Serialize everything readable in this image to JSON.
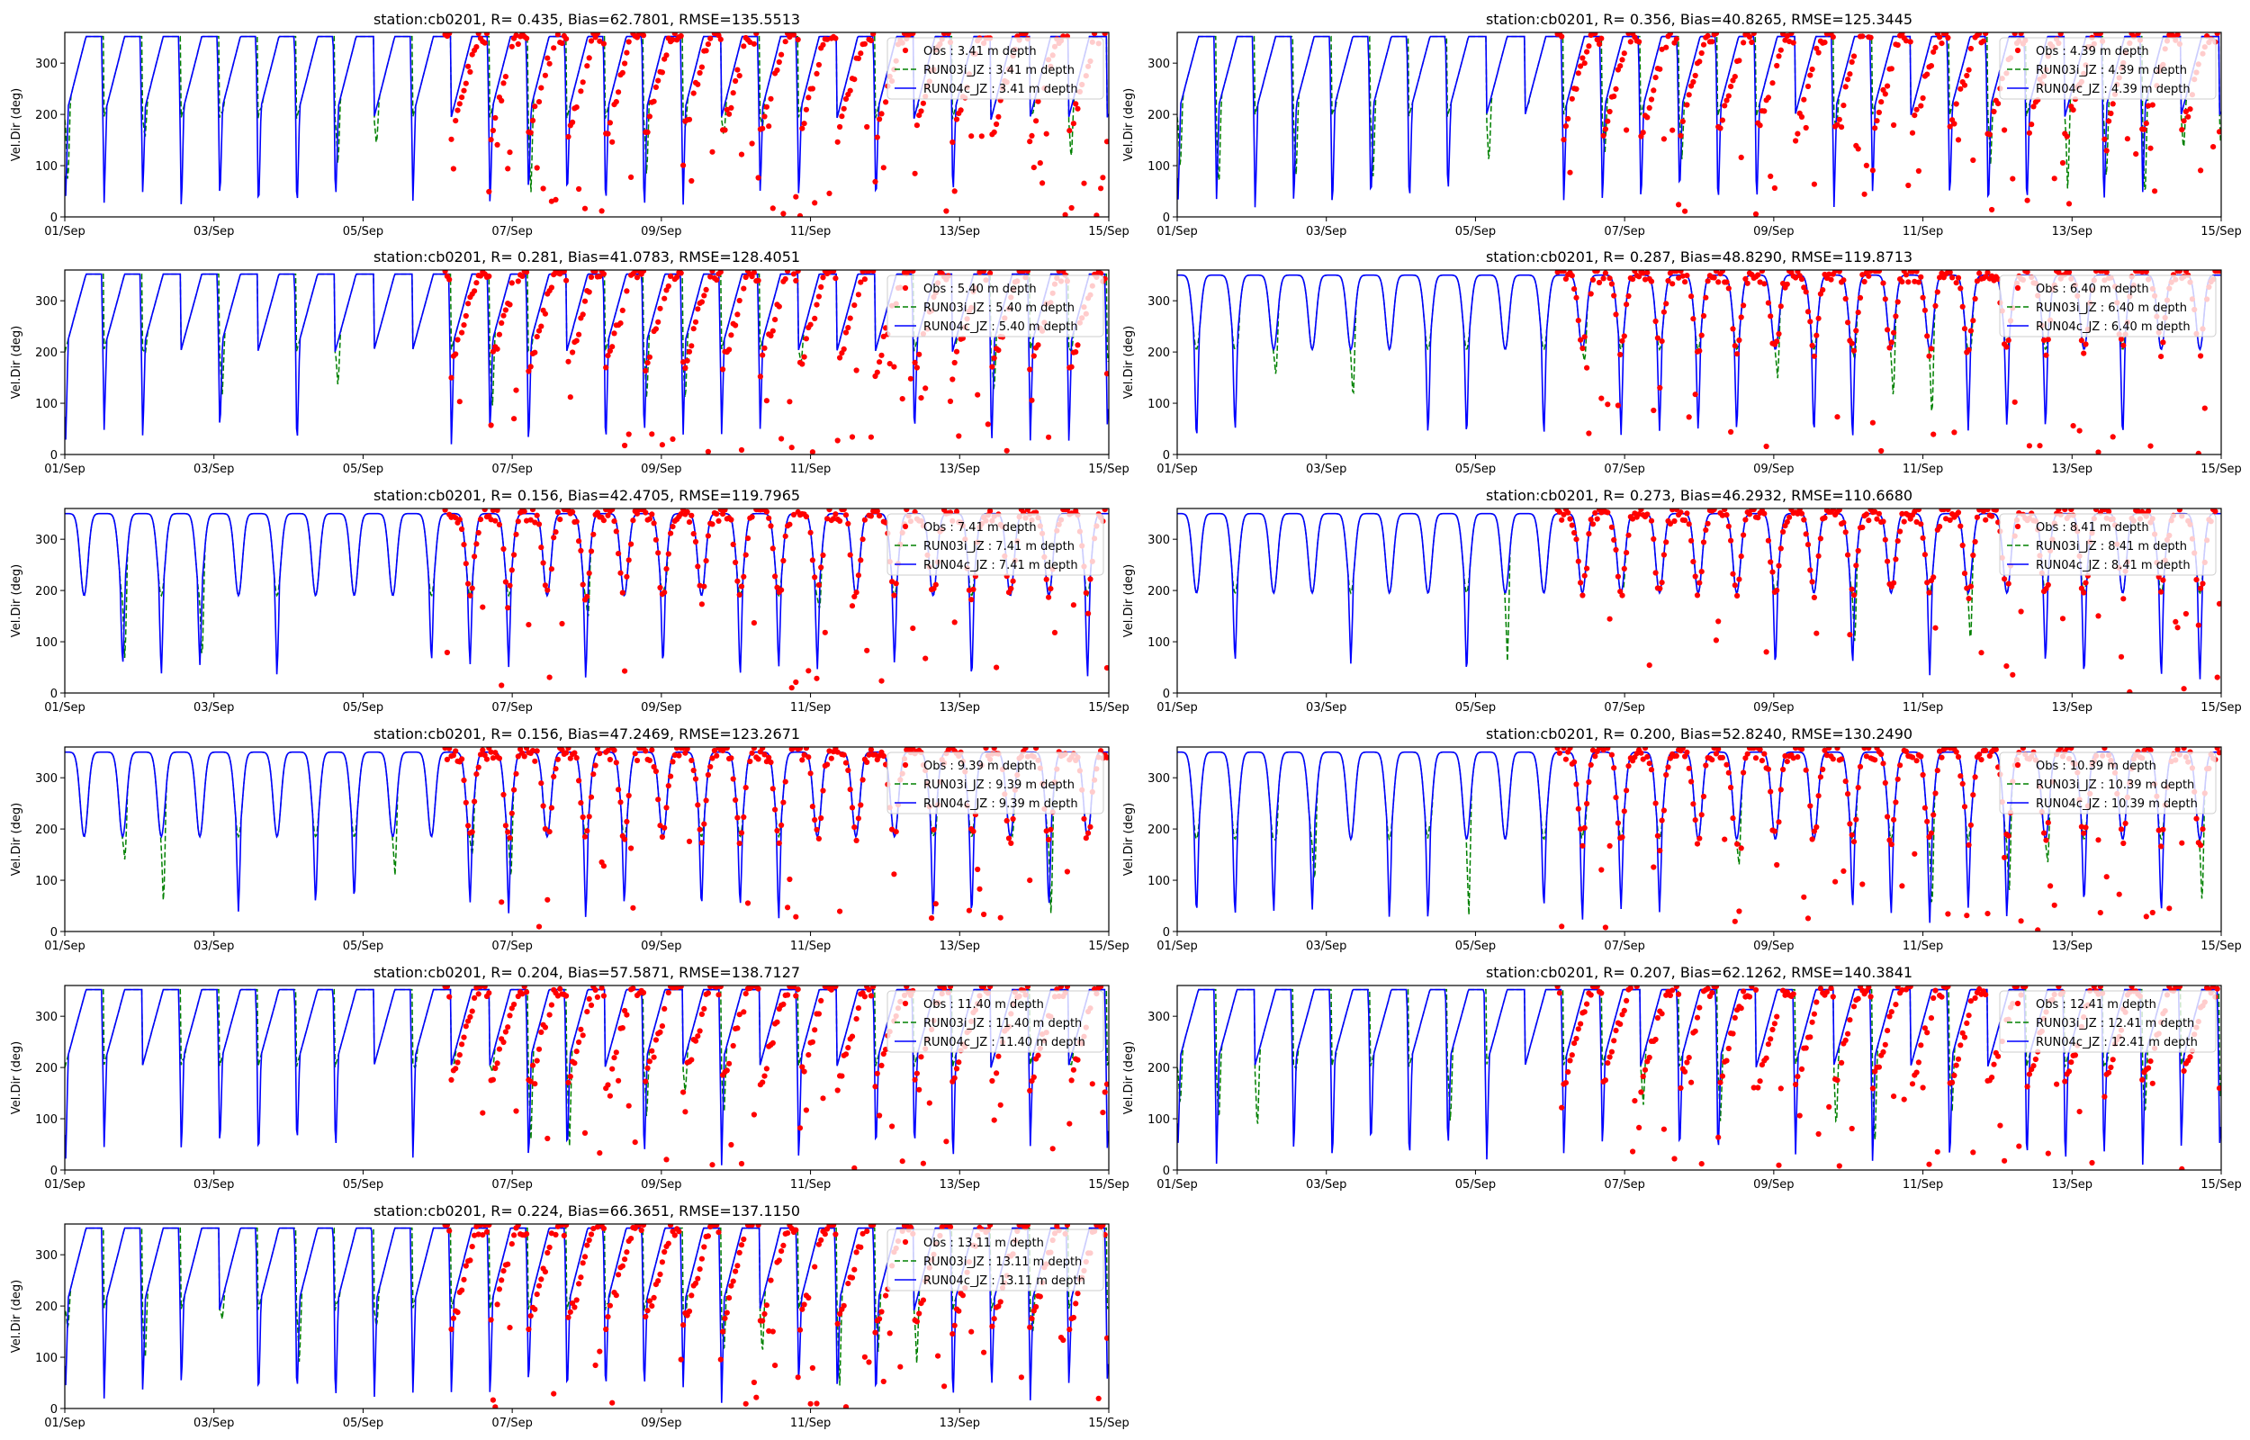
{
  "chart_data": {
    "type": "line",
    "layout": "grid 6 rows x 2 columns, 11 panels",
    "xlabel": "",
    "ylabel": "Vel.Dir (deg)",
    "xlim_days": [
      0,
      14
    ],
    "ylim": [
      0,
      360
    ],
    "x_ticks": [
      {
        "day": 0,
        "label": "01/Sep"
      },
      {
        "day": 2,
        "label": "03/Sep"
      },
      {
        "day": 4,
        "label": "05/Sep"
      },
      {
        "day": 6,
        "label": "07/Sep"
      },
      {
        "day": 8,
        "label": "09/Sep"
      },
      {
        "day": 10,
        "label": "11/Sep"
      },
      {
        "day": 12,
        "label": "13/Sep"
      },
      {
        "day": 14,
        "label": "15/Sep"
      }
    ],
    "y_ticks": [
      0,
      100,
      200,
      300
    ],
    "obs_start_day": 5.1,
    "colors": {
      "obs": "#ff0000",
      "run03i": "#008000",
      "run04c": "#0000ff",
      "axis": "#000000"
    },
    "panels": [
      {
        "title": "station:cb0201, R= 0.435, Bias=62.7801, RMSE=135.5513",
        "depth": "3.41",
        "legend": [
          "Obs : 3.41 m depth",
          "RUN03i_JZ : 3.41 m depth",
          "RUN04c_JZ : 3.41 m depth"
        ],
        "high": 352,
        "trough": 190,
        "spike_low": 8,
        "spike_rate": 0.75,
        "sawtooth": true,
        "obs_low_frac": 0.45
      },
      {
        "title": "station:cb0201, R= 0.356, Bias=40.8265, RMSE=125.3445",
        "depth": "4.39",
        "legend": [
          "Obs : 4.39 m depth",
          "RUN03i_JZ : 4.39 m depth",
          "RUN04c_JZ : 4.39 m depth"
        ],
        "high": 352,
        "trough": 195,
        "spike_low": 8,
        "spike_rate": 0.75,
        "sawtooth": true,
        "obs_low_frac": 0.35
      },
      {
        "title": "station:cb0201, R= 0.281, Bias=41.0783, RMSE=128.4051",
        "depth": "5.40",
        "legend": [
          "Obs : 5.40 m depth",
          "RUN03i_JZ : 5.40 m depth",
          "RUN04c_JZ : 5.40 m depth"
        ],
        "high": 352,
        "trough": 200,
        "spike_low": 10,
        "spike_rate": 0.7,
        "sawtooth": true,
        "obs_low_frac": 0.3
      },
      {
        "title": "station:cb0201, R= 0.287, Bias=48.8290, RMSE=119.8713",
        "depth": "6.40",
        "legend": [
          "Obs : 6.40 m depth",
          "RUN03i_JZ : 6.40 m depth",
          "RUN04c_JZ : 6.40 m depth"
        ],
        "high": 350,
        "trough": 205,
        "spike_low": 10,
        "spike_rate": 0.65,
        "sawtooth": false,
        "obs_low_frac": 0.25
      },
      {
        "title": "station:cb0201, R= 0.156, Bias=42.4705, RMSE=119.7965",
        "depth": "7.41",
        "legend": [
          "Obs : 7.41 m depth",
          "RUN03i_JZ : 7.41 m depth",
          "RUN04c_JZ : 7.41 m depth"
        ],
        "high": 350,
        "trough": 190,
        "spike_low": 15,
        "spike_rate": 0.45,
        "sawtooth": false,
        "obs_low_frac": 0.22
      },
      {
        "title": "station:cb0201, R= 0.273, Bias=46.2932, RMSE=110.6680",
        "depth": "8.41",
        "legend": [
          "Obs : 8.41 m depth",
          "RUN03i_JZ : 8.41 m depth",
          "RUN04c_JZ : 8.41 m depth"
        ],
        "high": 350,
        "trough": 195,
        "spike_low": 15,
        "spike_rate": 0.35,
        "sawtooth": false,
        "obs_low_frac": 0.2
      },
      {
        "title": "station:cb0201, R= 0.156, Bias=47.2469, RMSE=123.2671",
        "depth": "9.39",
        "legend": [
          "Obs : 9.39 m depth",
          "RUN03i_JZ : 9.39 m depth",
          "RUN04c_JZ : 9.39 m depth"
        ],
        "high": 350,
        "trough": 185,
        "spike_low": 15,
        "spike_rate": 0.45,
        "sawtooth": false,
        "obs_low_frac": 0.25
      },
      {
        "title": "station:cb0201, R= 0.200, Bias=52.8240, RMSE=130.2490",
        "depth": "10.39",
        "legend": [
          "Obs : 10.39 m depth",
          "RUN03i_JZ : 10.39 m depth",
          "RUN04c_JZ : 10.39 m depth"
        ],
        "high": 350,
        "trough": 180,
        "spike_low": 10,
        "spike_rate": 0.55,
        "sawtooth": false,
        "obs_low_frac": 0.25
      },
      {
        "title": "station:cb0201, R= 0.204, Bias=57.5871, RMSE=138.7127",
        "depth": "11.40",
        "legend": [
          "Obs : 11.40 m depth",
          "RUN03i_JZ : 11.40 m depth",
          "RUN04c_JZ : 11.40 m depth"
        ],
        "high": 352,
        "trough": 200,
        "spike_low": 8,
        "spike_rate": 0.75,
        "sawtooth": true,
        "obs_low_frac": 0.3
      },
      {
        "title": "station:cb0201, R= 0.207, Bias=62.1262, RMSE=140.3841",
        "depth": "12.41",
        "legend": [
          "Obs : 12.41 m depth",
          "RUN03i_JZ : 12.41 m depth",
          "RUN04c_JZ : 12.41 m depth"
        ],
        "high": 352,
        "trough": 200,
        "spike_low": 8,
        "spike_rate": 0.75,
        "sawtooth": true,
        "obs_low_frac": 0.3
      },
      {
        "title": "station:cb0201, R= 0.224, Bias=66.3651, RMSE=137.1150",
        "depth": "13.11",
        "legend": [
          "Obs : 13.11 m depth",
          "RUN03i_JZ : 13.11 m depth",
          "RUN04c_JZ : 13.11 m depth"
        ],
        "high": 352,
        "trough": 190,
        "spike_low": 8,
        "spike_rate": 0.75,
        "sawtooth": true,
        "obs_low_frac": 0.35
      }
    ]
  }
}
